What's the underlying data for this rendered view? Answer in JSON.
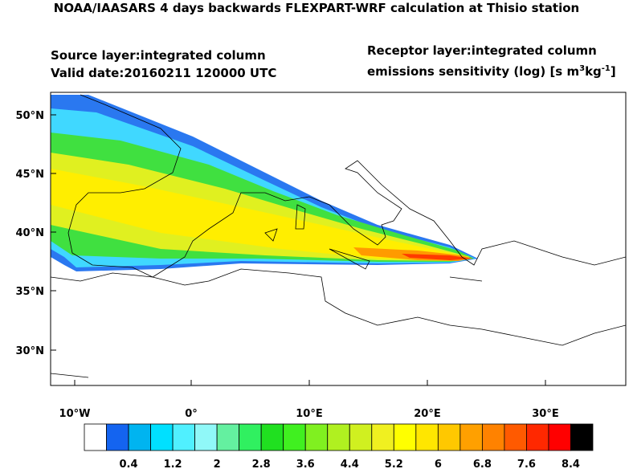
{
  "header": {
    "title": "NOAA/IAASARS 4 days backwards FLEXPART-WRF calculation at Thisio station",
    "source_layer": "Source layer:integrated column",
    "valid_date": "Valid date:20160211 120000 UTC",
    "receptor_layer": "Receptor layer:integrated column",
    "units_parts": [
      "emissions sensitivity (log) [s m",
      "3",
      "kg",
      "-1",
      "]"
    ]
  },
  "map": {
    "lat_labels": [
      "50°N",
      "45°N",
      "40°N",
      "35°N",
      "30°N"
    ],
    "lon_labels": [
      "10°W",
      "0°",
      "10°E",
      "20°E",
      "30°E"
    ]
  },
  "colorbar": {
    "ticks": [
      0.4,
      1.2,
      2,
      2.8,
      3.6,
      4.4,
      5.2,
      6,
      6.8,
      7.6,
      8.4
    ],
    "colors": [
      "#ffffff",
      "#1464f0",
      "#00b4f0",
      "#00e0ff",
      "#50f0ff",
      "#90f8f8",
      "#64f0a0",
      "#30f060",
      "#20e020",
      "#40f020",
      "#80f020",
      "#b0f020",
      "#d0f020",
      "#f0f020",
      "#ffff00",
      "#ffe600",
      "#ffc800",
      "#ffa000",
      "#ff8200",
      "#ff5a00",
      "#ff2800",
      "#ff0000",
      "#000000"
    ]
  }
}
